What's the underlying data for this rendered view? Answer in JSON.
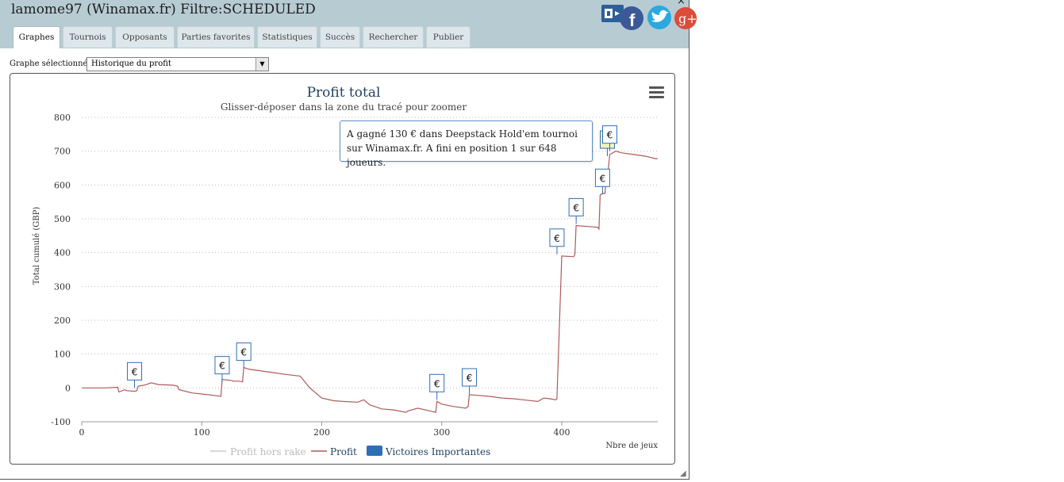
{
  "window": {
    "title": "lamome97 (Winamax.fr) Filtre:SCHEDULED",
    "close_glyph": "×",
    "resize_glyph": "◢"
  },
  "tabs": [
    {
      "label": "Graphes",
      "active": true
    },
    {
      "label": "Tournois"
    },
    {
      "label": "Opposants"
    },
    {
      "label": "Parties favorites"
    },
    {
      "label": "Statistiques"
    },
    {
      "label": "Succès"
    },
    {
      "label": "Rechercher"
    },
    {
      "label": "Publier"
    }
  ],
  "social": {
    "icons": [
      "share-icon",
      "facebook-icon",
      "twitter-icon",
      "google-plus-icon"
    ],
    "google_plus_label": "g+",
    "facebook_label": "f"
  },
  "graph_selector": {
    "label": "Graphe sélectionné :",
    "value": "Historique du profit"
  },
  "tooltip": {
    "text": "A gagné 130 € dans Deepstack Hold'em tournoi sur Winamax.fr. A fini en position 1 sur 648 joueurs."
  },
  "colors": {
    "profit_line": "#b05a5a",
    "rake_line": "#cccccc",
    "marker_border": "#2d6fb5",
    "title": "#1f3f5f",
    "highlight_marker": "#f4f3b8"
  },
  "chart_data": {
    "type": "line",
    "title": "Profit total",
    "subtitle": "Glisser-déposer dans la zone du tracé pour zoomer",
    "xlabel": "Nbre de jeux",
    "ylabel": "Total cumulé (GBP)",
    "xlim": [
      0,
      480
    ],
    "ylim": [
      -100,
      800
    ],
    "xticks": [
      0,
      100,
      200,
      300,
      400
    ],
    "yticks": [
      -100,
      0,
      100,
      200,
      300,
      400,
      500,
      600,
      700,
      800
    ],
    "grid": true,
    "legend_position": "bottom",
    "legend": [
      {
        "label": "Profit hors rake",
        "type": "line",
        "muted": true
      },
      {
        "label": "Profit",
        "type": "line"
      },
      {
        "label": "Victoires Importantes",
        "type": "flag"
      }
    ],
    "series": [
      {
        "name": "Profit",
        "x": [
          0,
          20,
          30,
          31,
          36,
          37,
          44,
          46,
          47,
          52,
          58,
          64,
          76,
          80,
          81,
          92,
          100,
          110,
          116,
          117,
          125,
          126,
          131,
          134,
          135,
          140,
          150,
          160,
          170,
          182,
          190,
          200,
          210,
          218,
          230,
          235,
          240,
          250,
          260,
          270,
          272,
          280,
          290,
          295,
          296,
          300,
          310,
          320,
          322,
          323,
          330,
          340,
          350,
          360,
          370,
          380,
          385,
          390,
          395,
          396,
          400,
          410,
          411,
          412,
          430,
          431,
          432,
          434,
          436,
          437,
          438,
          440,
          445,
          450,
          460,
          470,
          478,
          480
        ],
        "values": [
          0,
          0,
          2,
          -12,
          -5,
          -8,
          -10,
          -8,
          5,
          8,
          15,
          10,
          8,
          5,
          -5,
          -15,
          -18,
          -22,
          -25,
          25,
          22,
          20,
          20,
          18,
          60,
          55,
          50,
          45,
          40,
          35,
          0,
          -30,
          -38,
          -40,
          -42,
          -35,
          -50,
          -62,
          -65,
          -72,
          -68,
          -60,
          -68,
          -72,
          -40,
          -48,
          -55,
          -60,
          -55,
          -20,
          -22,
          -25,
          -30,
          -32,
          -36,
          -40,
          -30,
          -32,
          -35,
          -32,
          390,
          388,
          395,
          480,
          475,
          470,
          570,
          575,
          575,
          620,
          620,
          690,
          700,
          695,
          690,
          685,
          678,
          678
        ]
      }
    ],
    "big_wins": [
      {
        "x": 44,
        "y": 0
      },
      {
        "x": 117,
        "y": 18
      },
      {
        "x": 135,
        "y": 58
      },
      {
        "x": 296,
        "y": -35
      },
      {
        "x": 323,
        "y": -18
      },
      {
        "x": 396,
        "y": 395
      },
      {
        "x": 412,
        "y": 485
      },
      {
        "x": 434,
        "y": 572
      },
      {
        "x": 438,
        "y": 685,
        "highlight": true
      },
      {
        "x": 440,
        "y": 700
      }
    ],
    "marker_label": "€"
  },
  "menu_icon": "hamburger-menu-icon"
}
